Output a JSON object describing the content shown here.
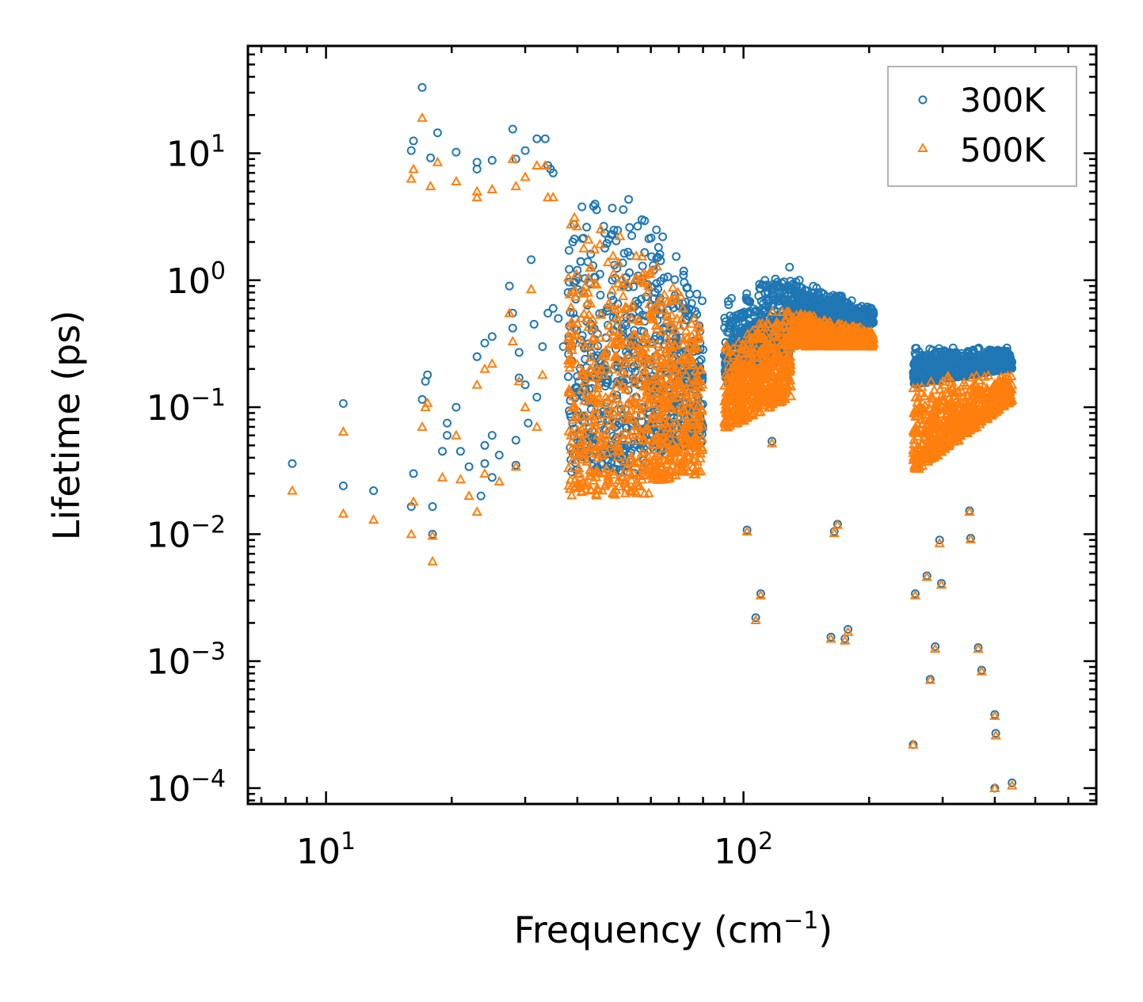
{
  "chart_data": {
    "type": "scatter",
    "title": "",
    "xlabel": "Frequency (cm",
    "xlabel_sup": "−1",
    "xlabel_end": ")",
    "ylabel": "Lifetime (ps)",
    "xscale": "log",
    "yscale": "log",
    "xlim": [
      6.5,
      700
    ],
    "ylim": [
      7.5e-05,
      70
    ],
    "x_ticks": [
      {
        "value": 10,
        "base": "10",
        "exp": "1"
      },
      {
        "value": 100,
        "base": "10",
        "exp": "2"
      }
    ],
    "y_ticks": [
      {
        "value": 0.0001,
        "base": "10",
        "exp": "−4"
      },
      {
        "value": 0.001,
        "base": "10",
        "exp": "−3"
      },
      {
        "value": 0.01,
        "base": "10",
        "exp": "−2"
      },
      {
        "value": 0.1,
        "base": "10",
        "exp": "−1"
      },
      {
        "value": 1,
        "base": "10",
        "exp": "0"
      },
      {
        "value": 10,
        "base": "10",
        "exp": "1"
      }
    ],
    "legend_position": "top-right",
    "series": [
      {
        "name": "300K",
        "marker": "circle",
        "color": "#1f77b4",
        "points": [
          [
            8.3,
            0.036
          ],
          [
            11.0,
            0.107
          ],
          [
            11.0,
            0.024
          ],
          [
            13.0,
            0.022
          ],
          [
            16.0,
            0.0165
          ],
          [
            16.2,
            0.03
          ],
          [
            17.0,
            0.115
          ],
          [
            17.3,
            0.16
          ],
          [
            17.5,
            0.18
          ],
          [
            18.0,
            0.0165
          ],
          [
            16.0,
            10.5
          ],
          [
            16.2,
            12.5
          ],
          [
            17.0,
            33
          ],
          [
            17.8,
            9.2
          ],
          [
            18.5,
            14.5
          ],
          [
            20.5,
            10.2
          ],
          [
            23.0,
            8.5
          ],
          [
            23.0,
            7.5
          ],
          [
            25.0,
            8.8
          ],
          [
            28.0,
            15.5
          ],
          [
            28.5,
            9
          ],
          [
            30.0,
            10.5
          ],
          [
            32.0,
            13
          ],
          [
            33.5,
            13
          ],
          [
            34.0,
            8
          ],
          [
            34.5,
            7.5
          ],
          [
            35.0,
            7
          ],
          [
            18.0,
            0.01
          ],
          [
            19.0,
            0.045
          ],
          [
            19.5,
            0.075
          ],
          [
            19.5,
            0.06
          ],
          [
            20.5,
            0.1
          ],
          [
            21.0,
            0.045
          ],
          [
            22.0,
            0.034
          ],
          [
            23.0,
            0.25
          ],
          [
            23.5,
            0.02
          ],
          [
            24.0,
            0.32
          ],
          [
            24.0,
            0.05
          ],
          [
            24.0,
            0.036
          ],
          [
            25.0,
            0.36
          ],
          [
            25.0,
            0.06
          ],
          [
            25.0,
            0.028
          ],
          [
            26.0,
            0.042
          ],
          [
            27.5,
            0.9
          ],
          [
            28.0,
            0.55
          ],
          [
            28.0,
            0.42
          ],
          [
            28.5,
            0.055
          ],
          [
            28.5,
            0.035
          ],
          [
            29.0,
            0.27
          ],
          [
            29.0,
            0.17
          ],
          [
            30.0,
            0.15
          ],
          [
            30.5,
            0.075
          ],
          [
            31.0,
            1.45
          ],
          [
            31.5,
            0.45
          ],
          [
            32.0,
            0.12
          ],
          [
            33.0,
            0.3
          ],
          [
            34.0,
            0.55
          ],
          [
            35.0,
            0.6
          ],
          [
            36.0,
            0.5
          ],
          [
            37.0,
            0.3
          ],
          [
            38.0,
            0.8
          ],
          [
            39.0,
            2.0
          ],
          [
            40.0,
            1.2
          ],
          [
            102,
            0.0108
          ],
          [
            107,
            0.0022
          ],
          [
            110,
            0.0034
          ],
          [
            117,
            0.054
          ],
          [
            165,
            0.0105
          ],
          [
            168,
            0.012
          ],
          [
            162,
            0.00155
          ],
          [
            175,
            0.0015
          ],
          [
            178,
            0.00178
          ],
          [
            255,
            0.00022
          ],
          [
            258,
            0.0034
          ],
          [
            275,
            0.0047
          ],
          [
            280,
            0.00072
          ],
          [
            288,
            0.0013
          ],
          [
            295,
            0.009
          ],
          [
            298,
            0.0041
          ],
          [
            348,
            0.0153
          ],
          [
            350,
            0.0093
          ],
          [
            365,
            0.00128
          ],
          [
            372,
            0.00085
          ],
          [
            400,
            0.00038
          ],
          [
            402,
            0.00027
          ],
          [
            400,
            0.0001
          ],
          [
            440,
            0.00011
          ]
        ],
        "bands": [
          {
            "x": [
              38,
              60
            ],
            "y_top": [
              5.5,
              4.5
            ],
            "y_bottom": [
              0.03,
              0.03
            ],
            "density": 0.6
          },
          {
            "x": [
              60,
              80
            ],
            "y_top": [
              3.5,
              0.8
            ],
            "y_bottom": [
              0.04,
              0.05
            ],
            "density": 0.5
          },
          {
            "x": [
              90,
              130
            ],
            "y_top": [
              0.7,
              1.4
            ],
            "y_bottom": [
              0.15,
              0.25
            ],
            "density": 0.8
          },
          {
            "x": [
              130,
              205
            ],
            "y_top": [
              1.1,
              0.6
            ],
            "y_bottom": [
              0.45,
              0.45
            ],
            "density": 0.9
          },
          {
            "x": [
              255,
              440
            ],
            "y_top": [
              0.3,
              0.3
            ],
            "y_bottom": [
              0.15,
              0.2
            ],
            "density": 0.9
          }
        ]
      },
      {
        "name": "500K",
        "marker": "triangle",
        "color": "#ff7f0e",
        "points": [
          [
            8.3,
            0.022
          ],
          [
            11.0,
            0.064
          ],
          [
            11.0,
            0.0145
          ],
          [
            13.0,
            0.013
          ],
          [
            16.0,
            0.01
          ],
          [
            16.2,
            0.018
          ],
          [
            17.0,
            0.07
          ],
          [
            17.3,
            0.1
          ],
          [
            17.5,
            0.108
          ],
          [
            18.0,
            0.0097
          ],
          [
            18.0,
            0.0061
          ],
          [
            16.0,
            6.3
          ],
          [
            16.2,
            7.5
          ],
          [
            17.0,
            19
          ],
          [
            17.8,
            5.5
          ],
          [
            18.5,
            8.5
          ],
          [
            20.5,
            6
          ],
          [
            23.0,
            5
          ],
          [
            23.0,
            4.5
          ],
          [
            25.0,
            5.2
          ],
          [
            28.0,
            9
          ],
          [
            28.5,
            5.5
          ],
          [
            30.0,
            6.5
          ],
          [
            32.0,
            8
          ],
          [
            33.5,
            8
          ],
          [
            34.0,
            4.5
          ],
          [
            35.0,
            4.5
          ],
          [
            19.0,
            0.028
          ],
          [
            20.5,
            0.06
          ],
          [
            21.0,
            0.027
          ],
          [
            22.0,
            0.02
          ],
          [
            23.0,
            0.015
          ],
          [
            23.0,
            0.15
          ],
          [
            24.0,
            0.2
          ],
          [
            24.0,
            0.03
          ],
          [
            25.0,
            0.22
          ],
          [
            26.0,
            0.026
          ],
          [
            27.5,
            0.55
          ],
          [
            28.0,
            0.33
          ],
          [
            28.5,
            0.034
          ],
          [
            29.0,
            0.16
          ],
          [
            30.0,
            0.1
          ],
          [
            31.0,
            0.85
          ],
          [
            32.0,
            0.07
          ],
          [
            33.0,
            0.18
          ],
          [
            102,
            0.0105
          ],
          [
            107,
            0.0021
          ],
          [
            110,
            0.0033
          ],
          [
            117,
            0.052
          ],
          [
            165,
            0.0102
          ],
          [
            168,
            0.0118
          ],
          [
            162,
            0.0015
          ],
          [
            175,
            0.00145
          ],
          [
            178,
            0.0017
          ],
          [
            255,
            0.00022
          ],
          [
            258,
            0.0033
          ],
          [
            275,
            0.0046
          ],
          [
            280,
            0.00071
          ],
          [
            288,
            0.00125
          ],
          [
            295,
            0.0085
          ],
          [
            298,
            0.004
          ],
          [
            348,
            0.015
          ],
          [
            350,
            0.0091
          ],
          [
            365,
            0.00125
          ],
          [
            372,
            0.00083
          ],
          [
            400,
            0.00037
          ],
          [
            402,
            0.00026
          ],
          [
            400,
            0.0001
          ],
          [
            440,
            0.000105
          ]
        ],
        "bands": [
          {
            "x": [
              38,
              60
            ],
            "y_top": [
              3.5,
              3.0
            ],
            "y_bottom": [
              0.02,
              0.02
            ],
            "density": 0.6
          },
          {
            "x": [
              60,
              80
            ],
            "y_top": [
              2.2,
              0.5
            ],
            "y_bottom": [
              0.025,
              0.03
            ],
            "density": 0.5
          },
          {
            "x": [
              90,
              130
            ],
            "y_top": [
              0.35,
              0.75
            ],
            "y_bottom": [
              0.065,
              0.12
            ],
            "density": 0.8
          },
          {
            "x": [
              130,
              205
            ],
            "y_top": [
              0.6,
              0.4
            ],
            "y_bottom": [
              0.3,
              0.3
            ],
            "density": 0.9
          },
          {
            "x": [
              255,
              440
            ],
            "y_top": [
              0.18,
              0.18
            ],
            "y_bottom": [
              0.03,
              0.11
            ],
            "density": 0.9
          }
        ]
      }
    ]
  }
}
